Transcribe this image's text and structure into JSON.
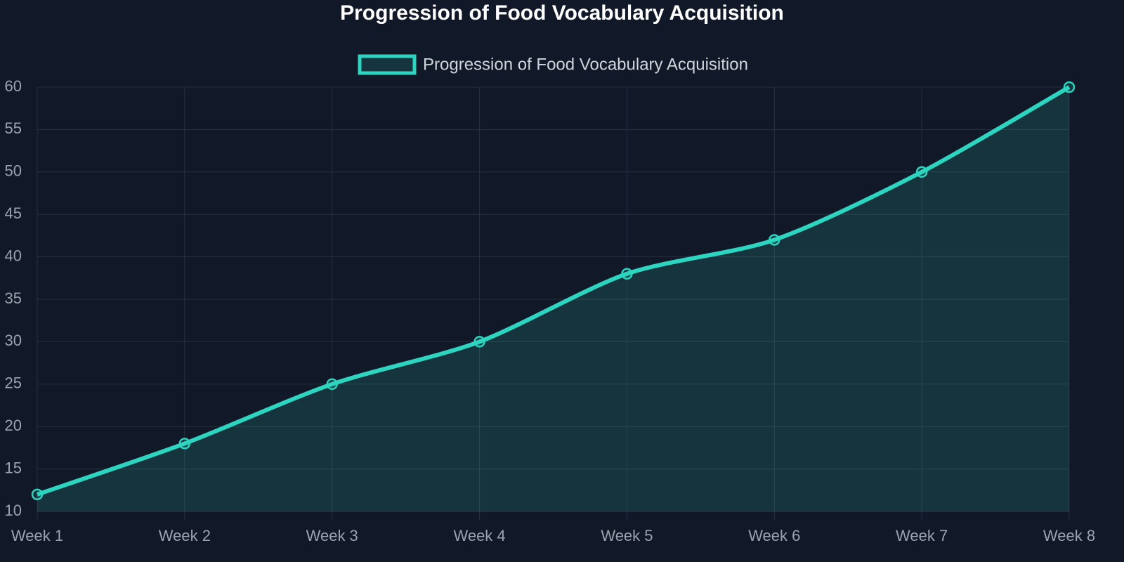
{
  "chart_data": {
    "type": "line",
    "title": "Progression of Food Vocabulary Acquisition",
    "categories": [
      "Week 1",
      "Week 2",
      "Week 3",
      "Week 4",
      "Week 5",
      "Week 6",
      "Week 7",
      "Week 8"
    ],
    "series": [
      {
        "name": "Progression of Food Vocabulary Acquisition",
        "color": "#2dd4bf",
        "values": [
          12,
          18,
          25,
          30,
          38,
          42,
          50,
          60
        ]
      }
    ],
    "ylim": [
      10,
      60
    ],
    "yticks": [
      10,
      15,
      20,
      25,
      30,
      35,
      40,
      45,
      50,
      55,
      60
    ],
    "grid": true,
    "fill": true,
    "legend": "top"
  }
}
